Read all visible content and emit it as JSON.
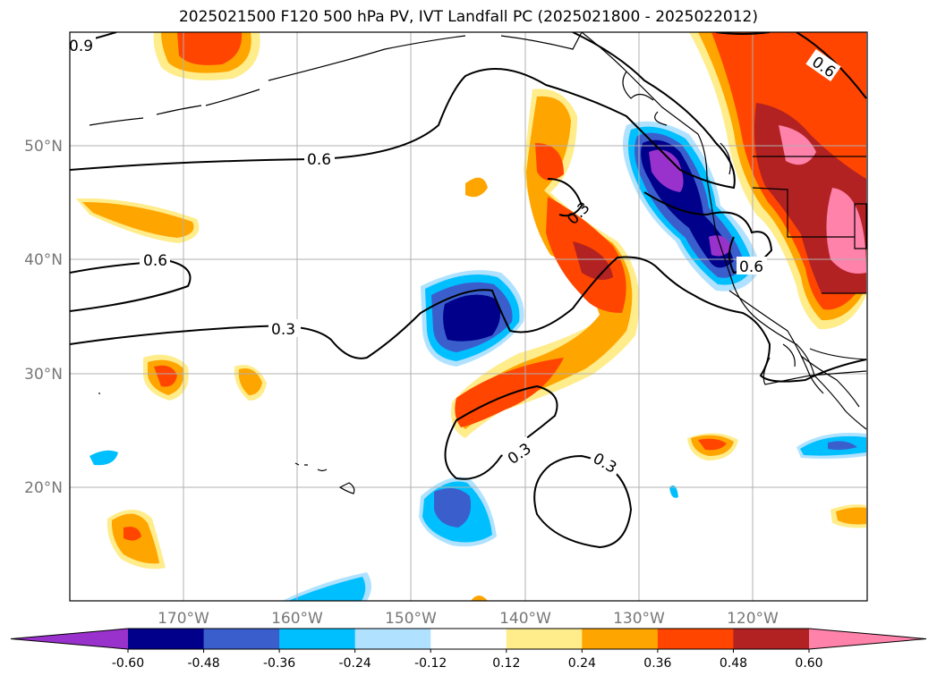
{
  "title": "2025021500 F120 500 hPa PV, IVT Landfall PC (2025021800 - 2025022012)",
  "map": {
    "projection": "PlateCarree",
    "extent_lon": [
      -180,
      -110
    ],
    "extent_lat": [
      10,
      60
    ],
    "lat_ticks": [
      {
        "value": 50,
        "label": "50°N"
      },
      {
        "value": 40,
        "label": "40°N"
      },
      {
        "value": 30,
        "label": "30°N"
      },
      {
        "value": 20,
        "label": "20°N"
      }
    ],
    "lon_ticks": [
      {
        "value": -170,
        "label": "170°W"
      },
      {
        "value": -160,
        "label": "160°W"
      },
      {
        "value": -150,
        "label": "150°W"
      },
      {
        "value": -140,
        "label": "140°W"
      },
      {
        "value": -130,
        "label": "130°W"
      },
      {
        "value": -120,
        "label": "120°W"
      }
    ],
    "grid": true,
    "contour_labels": [
      "0.9",
      "0.6",
      "0.6",
      "0.6",
      "0.6",
      "0.3",
      "0.3",
      "0.3",
      "0.3"
    ]
  },
  "colorbar": {
    "extend": "both",
    "levels": [
      "-0.60",
      "-0.48",
      "-0.36",
      "-0.24",
      "-0.12",
      "0.12",
      "0.24",
      "0.36",
      "0.48",
      "0.60"
    ],
    "colors": [
      "#9932cc",
      "#00008b",
      "#3a5fcd",
      "#00bfff",
      "#b0e2ff",
      "#ffffff",
      "#ffec8b",
      "#ffa500",
      "#ff4500",
      "#b22222",
      "#ff82ab"
    ]
  }
}
